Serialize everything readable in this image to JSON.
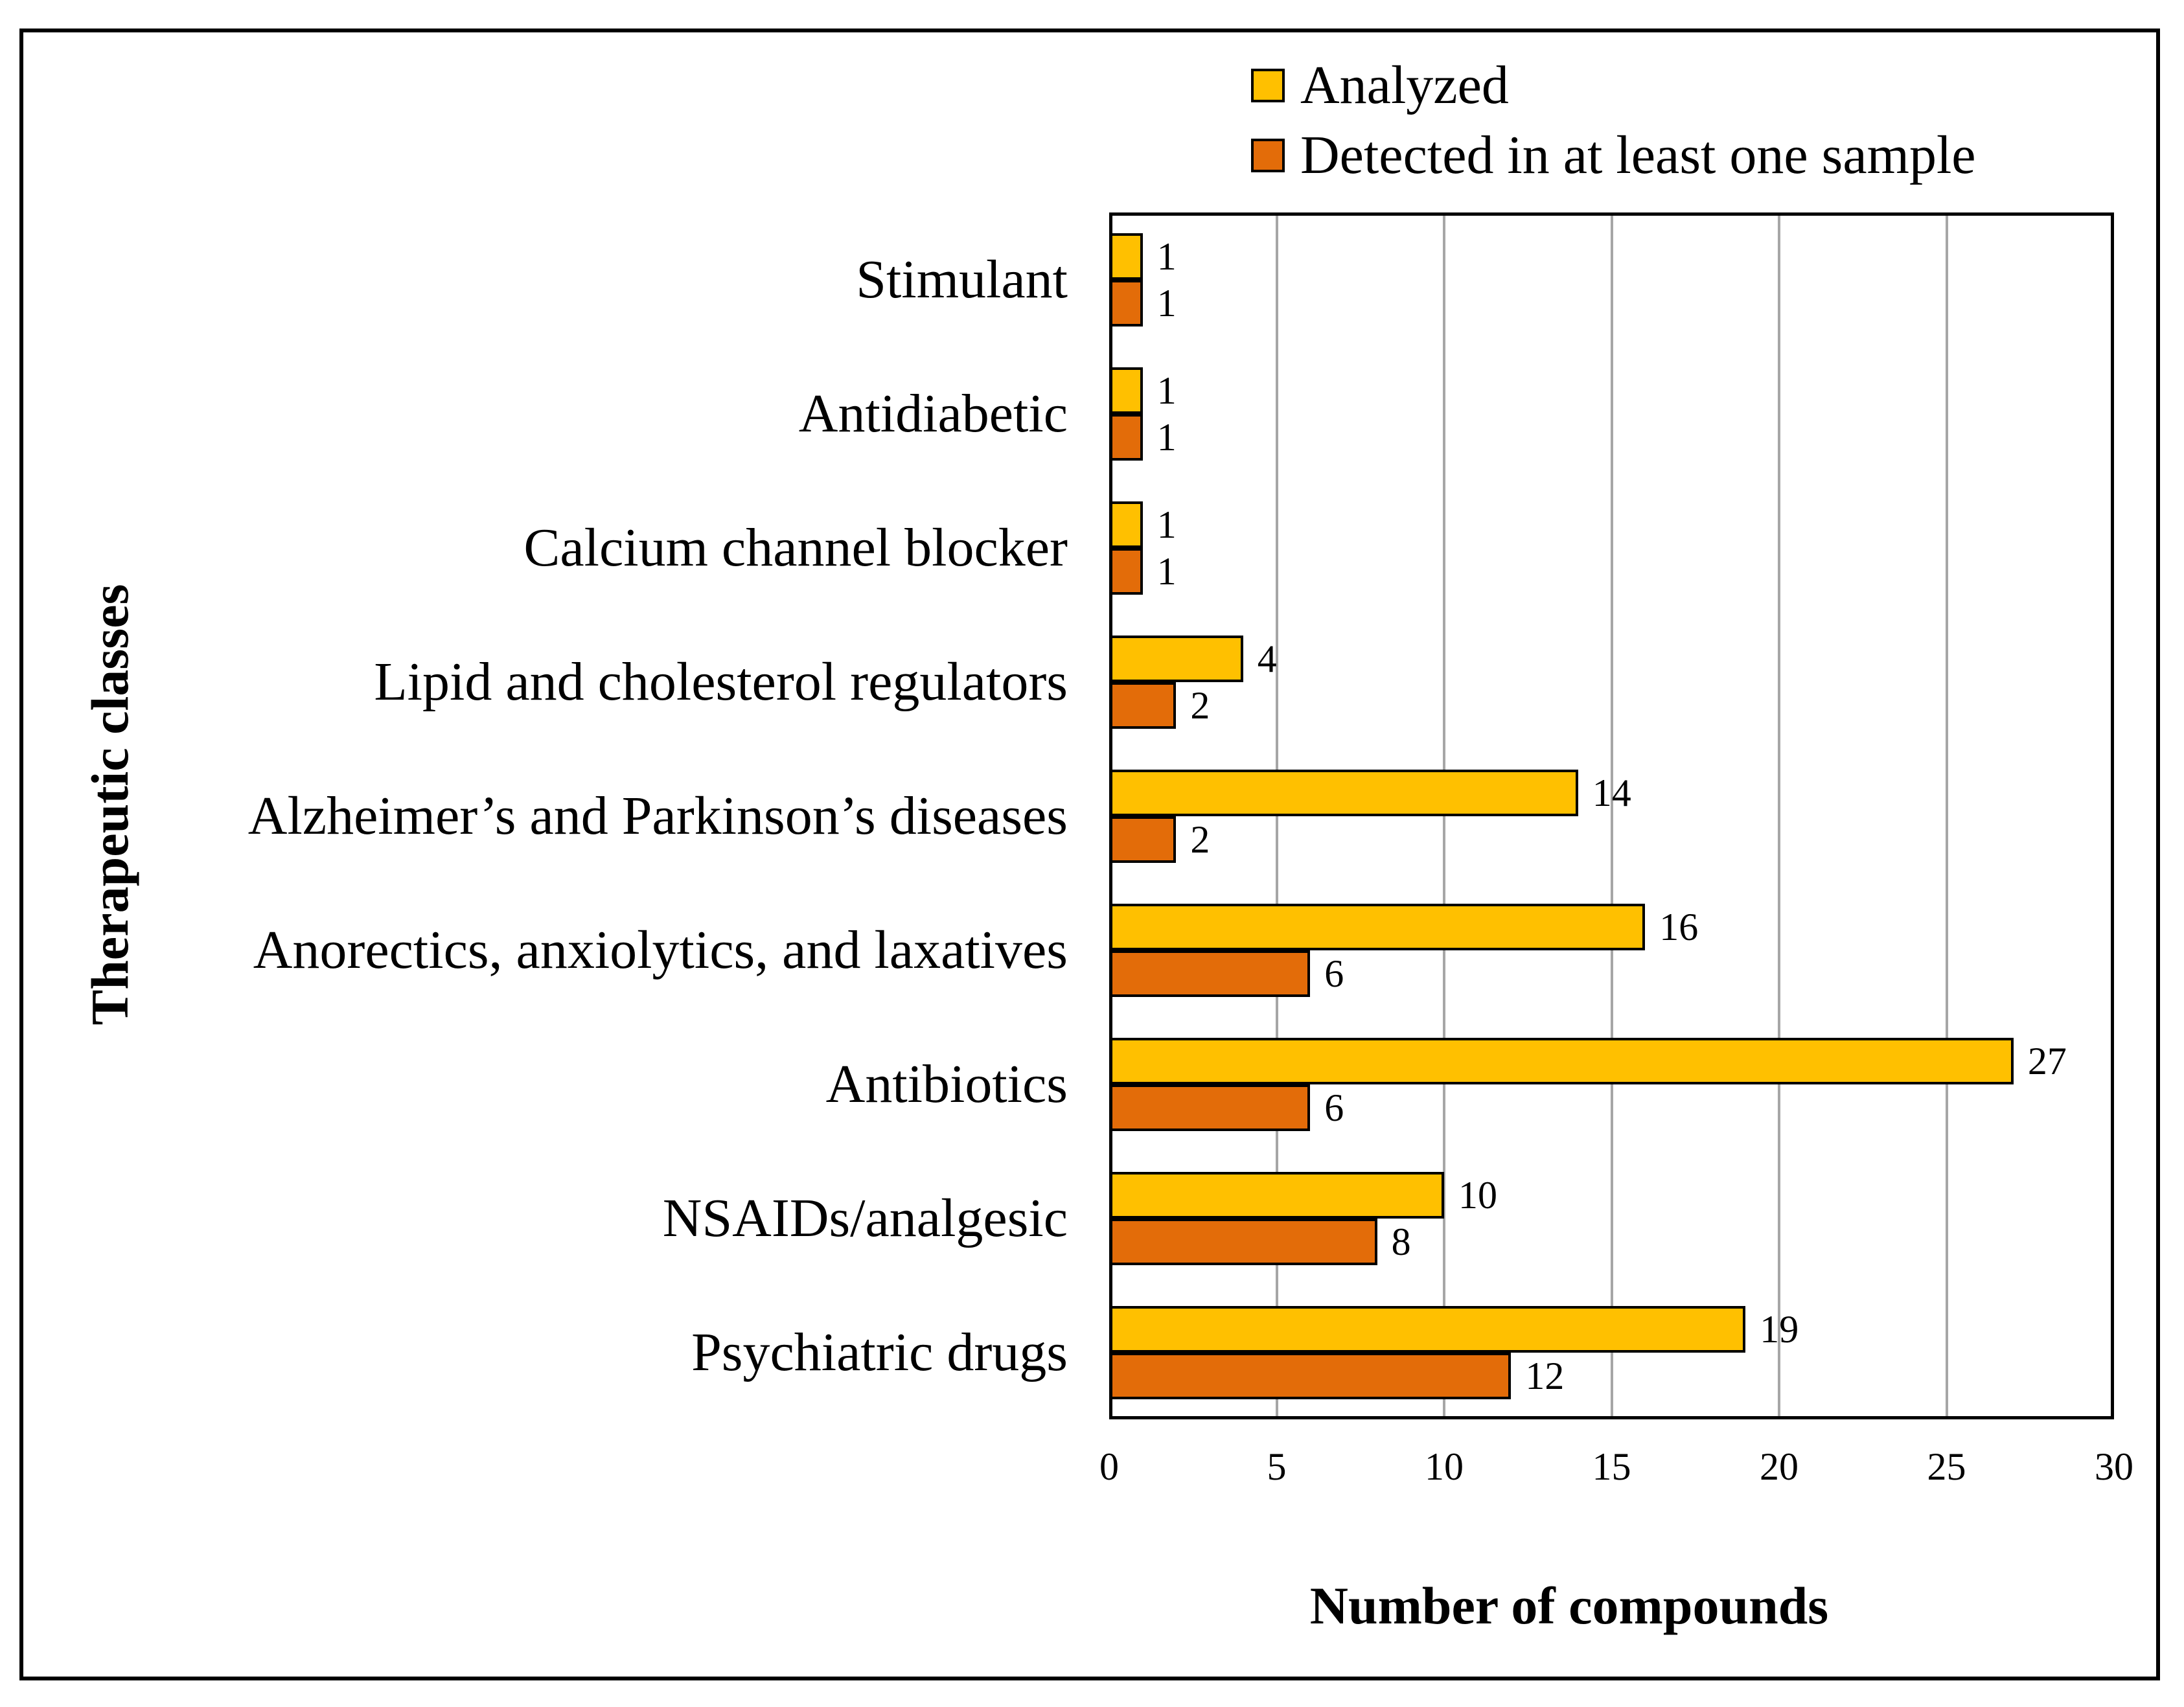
{
  "figure": {
    "background": "#FFFFFF",
    "frame_color": "#000000",
    "gridline_color": "#A6A6A6",
    "bar_border_color": "#000000"
  },
  "legend": {
    "position": "top",
    "items": [
      {
        "label": "Analyzed",
        "color": "#FFC000"
      },
      {
        "label": "Detected in at least one sample",
        "color": "#E36C09"
      }
    ]
  },
  "chart_data": {
    "type": "bar",
    "orientation": "horizontal",
    "xlabel": "Number of compounds",
    "ylabel": "Therapeutic classes",
    "xlim": [
      0,
      30
    ],
    "xticks": [
      0,
      5,
      10,
      15,
      20,
      25,
      30
    ],
    "grid": "vertical gray gridlines every 5 units",
    "data_labels": true,
    "categories_top_to_bottom": [
      "Stimulant",
      "Antidiabetic",
      "Calcium channel blocker",
      "Lipid and cholesterol regulators",
      "Alzheimer’s and Parkinson’s diseases",
      "Anorectics, anxiolytics, and laxatives",
      "Antibiotics",
      "NSAIDs/analgesic",
      "Psychiatric drugs"
    ],
    "series": [
      {
        "name": "Analyzed",
        "color": "#FFC000",
        "values": [
          1,
          1,
          1,
          4,
          14,
          16,
          27,
          10,
          19
        ]
      },
      {
        "name": "Detected in at least one sample",
        "color": "#E36C09",
        "values": [
          1,
          1,
          1,
          2,
          2,
          6,
          6,
          8,
          12
        ]
      }
    ]
  }
}
